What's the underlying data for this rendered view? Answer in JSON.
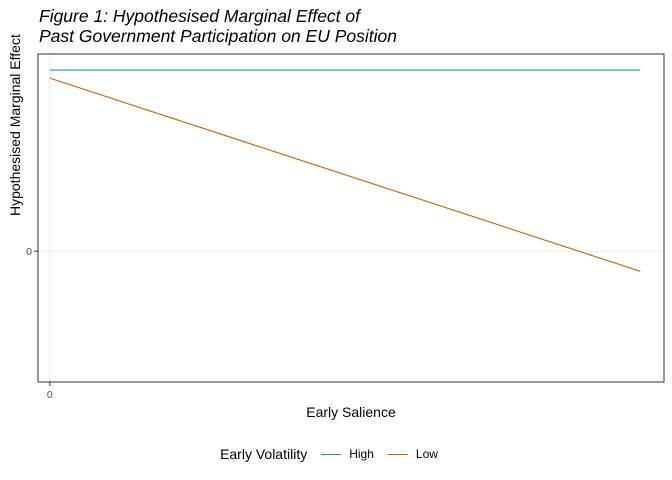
{
  "title_lines": [
    "Figure 1: Hypothesised Marginal Effect of",
    "Past Government Participation on EU Position"
  ],
  "colors": {
    "High": "#1a97a6",
    "Low": "#c5600b",
    "panel_border": "#333333",
    "grid": "#ebebeb"
  },
  "chart_data": {
    "type": "line",
    "title": "Figure 1: Hypothesised Marginal Effect of Past Government Participation on EU Position",
    "xlabel": "Early Salience",
    "ylabel": "Hypothesised Marginal Effect",
    "x_ticks": [
      "0"
    ],
    "y_ticks": [
      "0"
    ],
    "xlim": [
      -0.02,
      1.04
    ],
    "ylim": [
      -0.65,
      0.98
    ],
    "grid": true,
    "legend_title": "Early Volatility",
    "legend_position": "bottom",
    "series": [
      {
        "name": "High",
        "x": [
          0,
          1
        ],
        "y": [
          0.9,
          0.9
        ]
      },
      {
        "name": "Low",
        "x": [
          0,
          1
        ],
        "y": [
          0.86,
          -0.1
        ]
      }
    ]
  }
}
